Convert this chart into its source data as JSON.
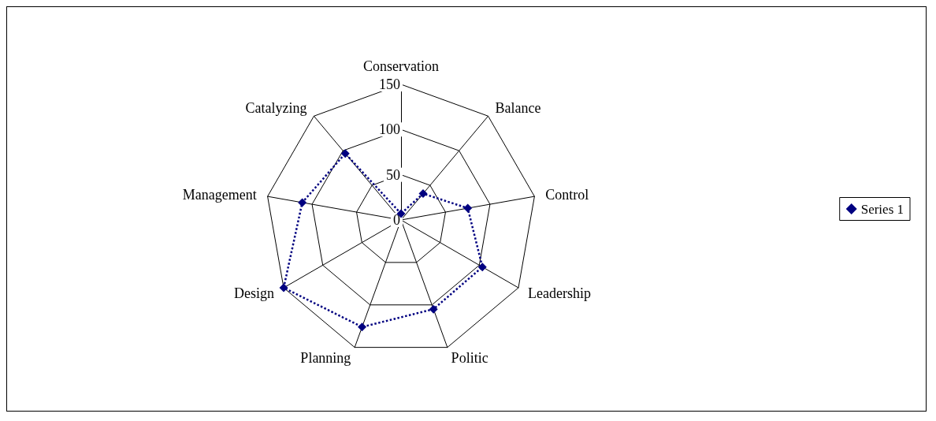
{
  "chart_data": {
    "type": "radar",
    "categories": [
      "Conservation",
      "Balance",
      "Control",
      "Leadership",
      "Politic",
      "Planning",
      "Design",
      "Management",
      "Catalyzing"
    ],
    "series": [
      {
        "name": "Series 1",
        "color": "#000080",
        "values": [
          7,
          38,
          75,
          104,
          105,
          126,
          150,
          111,
          96
        ]
      }
    ],
    "ylim": [
      0,
      150
    ],
    "yticks": [
      0,
      50,
      100,
      150
    ],
    "grid": true,
    "legend": "right",
    "marker": "diamond",
    "line_style": "dotted"
  }
}
